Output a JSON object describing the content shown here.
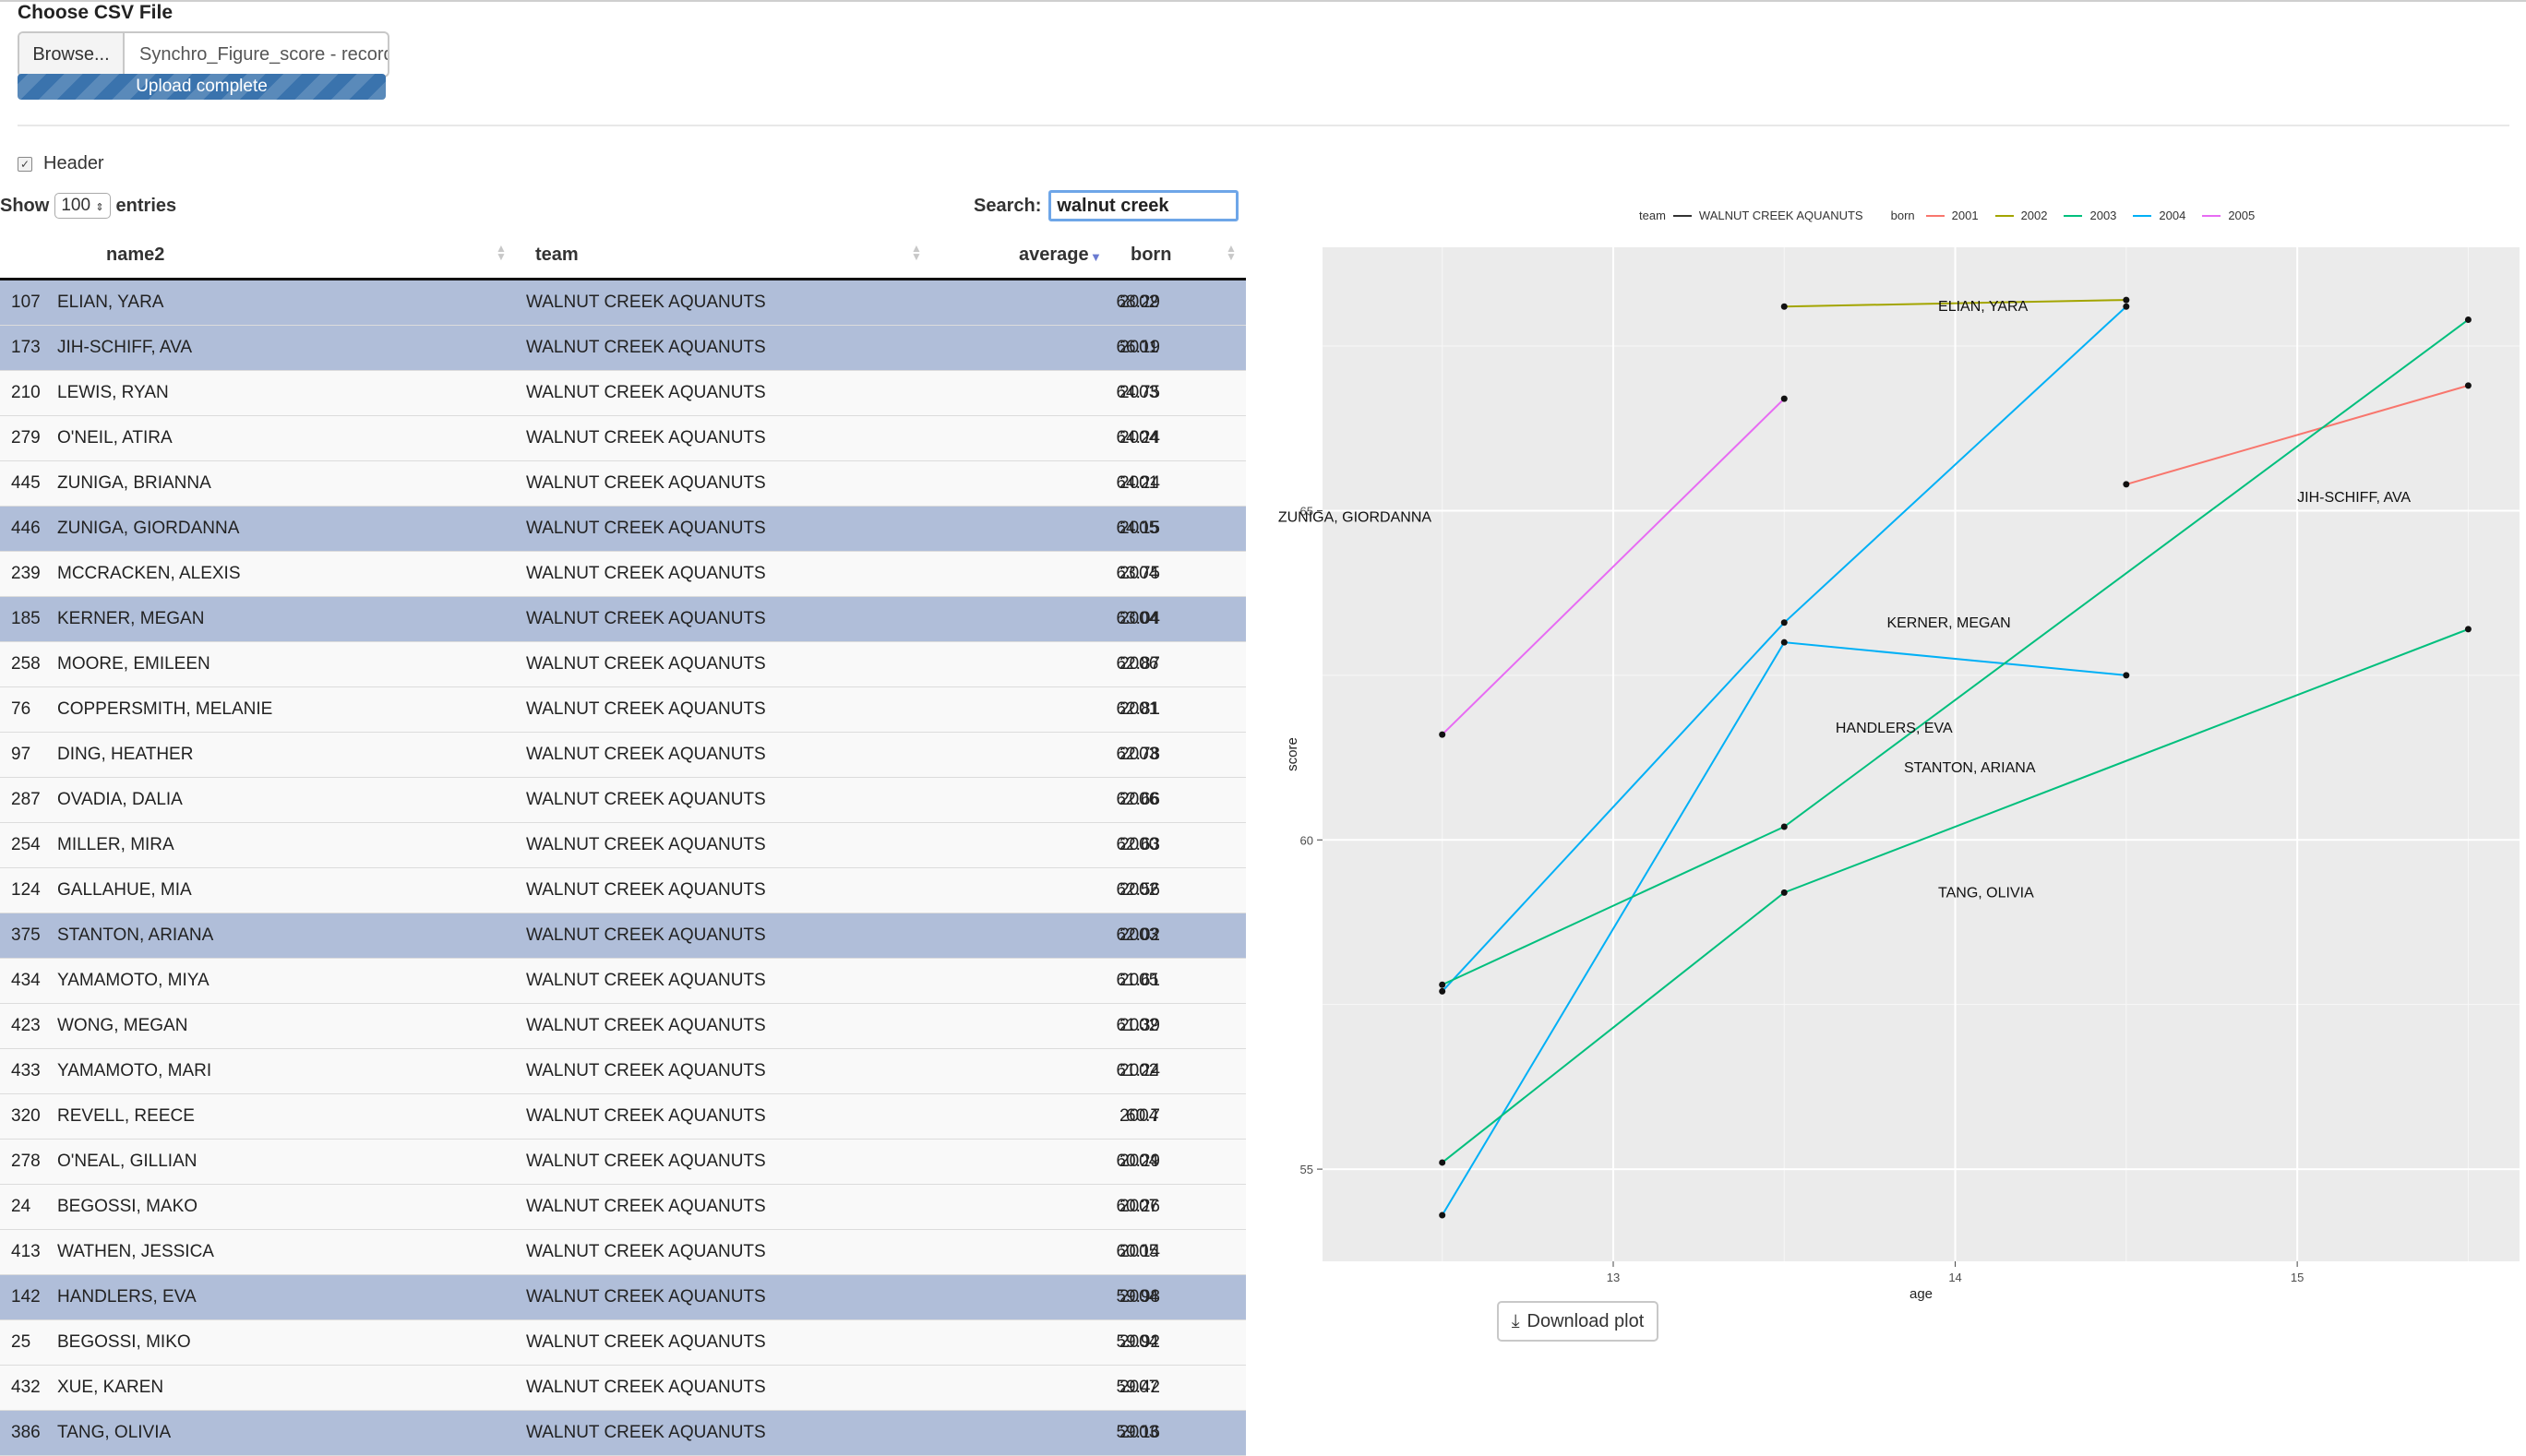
{
  "upload": {
    "label": "Choose CSV File",
    "browse_label": "Browse...",
    "file_name": "Synchro_Figure_score - record",
    "progress_text": "Upload complete"
  },
  "header_option": {
    "label": "Header",
    "checked": true
  },
  "table_controls": {
    "show_label": "Show",
    "length_value": "100",
    "entries_label": "entries",
    "search_label": "Search:",
    "search_value": "walnut creek"
  },
  "table": {
    "columns": [
      "",
      "name2",
      "team",
      "average",
      "born"
    ],
    "sorted_column": "average",
    "rows": [
      {
        "idx": "107",
        "name": "ELIAN, YARA",
        "team": "WALNUT CREEK AQUANUTS",
        "average": "68.29",
        "born": "2002",
        "selected": true
      },
      {
        "idx": "173",
        "name": "JIH-SCHIFF, AVA",
        "team": "WALNUT CREEK AQUANUTS",
        "average": "66.19",
        "born": "2001",
        "selected": true
      },
      {
        "idx": "210",
        "name": "LEWIS, RYAN",
        "team": "WALNUT CREEK AQUANUTS",
        "average": "64.75",
        "born": "2003",
        "selected": false
      },
      {
        "idx": "279",
        "name": "O'NEIL, ATIRA",
        "team": "WALNUT CREEK AQUANUTS",
        "average": "64.24",
        "born": "2004",
        "selected": false
      },
      {
        "idx": "445",
        "name": "ZUNIGA, BRIANNA",
        "team": "WALNUT CREEK AQUANUTS",
        "average": "64.24",
        "born": "2001",
        "selected": false
      },
      {
        "idx": "446",
        "name": "ZUNIGA, GIORDANNA",
        "team": "WALNUT CREEK AQUANUTS",
        "average": "64.15",
        "born": "2005",
        "selected": true
      },
      {
        "idx": "239",
        "name": "MCCRACKEN, ALEXIS",
        "team": "WALNUT CREEK AQUANUTS",
        "average": "63.75",
        "born": "2004",
        "selected": false
      },
      {
        "idx": "185",
        "name": "KERNER, MEGAN",
        "team": "WALNUT CREEK AQUANUTS",
        "average": "63.04",
        "born": "2004",
        "selected": true
      },
      {
        "idx": "258",
        "name": "MOORE, EMILEEN",
        "team": "WALNUT CREEK AQUANUTS",
        "average": "62.87",
        "born": "2006",
        "selected": false
      },
      {
        "idx": "76",
        "name": "COPPERSMITH, MELANIE",
        "team": "WALNUT CREEK AQUANUTS",
        "average": "62.81",
        "born": "2001",
        "selected": false
      },
      {
        "idx": "97",
        "name": "DING, HEATHER",
        "team": "WALNUT CREEK AQUANUTS",
        "average": "62.78",
        "born": "2003",
        "selected": false
      },
      {
        "idx": "287",
        "name": "OVADIA, DALIA",
        "team": "WALNUT CREEK AQUANUTS",
        "average": "62.66",
        "born": "2006",
        "selected": false
      },
      {
        "idx": "254",
        "name": "MILLER, MIRA",
        "team": "WALNUT CREEK AQUANUTS",
        "average": "62.63",
        "born": "2000",
        "selected": false
      },
      {
        "idx": "124",
        "name": "GALLAHUE, MIA",
        "team": "WALNUT CREEK AQUANUTS",
        "average": "62.56",
        "born": "2002",
        "selected": false
      },
      {
        "idx": "375",
        "name": "STANTON, ARIANA",
        "team": "WALNUT CREEK AQUANUTS",
        "average": "62.02",
        "born": "2003",
        "selected": true
      },
      {
        "idx": "434",
        "name": "YAMAMOTO, MIYA",
        "team": "WALNUT CREEK AQUANUTS",
        "average": "61.61",
        "born": "2005",
        "selected": false
      },
      {
        "idx": "423",
        "name": "WONG, MEGAN",
        "team": "WALNUT CREEK AQUANUTS",
        "average": "61.39",
        "born": "2002",
        "selected": false
      },
      {
        "idx": "433",
        "name": "YAMAMOTO, MARI",
        "team": "WALNUT CREEK AQUANUTS",
        "average": "61.24",
        "born": "2002",
        "selected": false
      },
      {
        "idx": "320",
        "name": "REVELL, REECE",
        "team": "WALNUT CREEK AQUANUTS",
        "average": "60.7",
        "born": "2004",
        "selected": false
      },
      {
        "idx": "278",
        "name": "O'NEAL, GILLIAN",
        "team": "WALNUT CREEK AQUANUTS",
        "average": "60.29",
        "born": "2004",
        "selected": false
      },
      {
        "idx": "24",
        "name": "BEGOSSI, MAKO",
        "team": "WALNUT CREEK AQUANUTS",
        "average": "60.26",
        "born": "2007",
        "selected": false
      },
      {
        "idx": "413",
        "name": "WATHEN, JESSICA",
        "team": "WALNUT CREEK AQUANUTS",
        "average": "60.14",
        "born": "2005",
        "selected": false
      },
      {
        "idx": "142",
        "name": "HANDLERS, EVA",
        "team": "WALNUT CREEK AQUANUTS",
        "average": "59.98",
        "born": "2004",
        "selected": true
      },
      {
        "idx": "25",
        "name": "BEGOSSI, MIKO",
        "team": "WALNUT CREEK AQUANUTS",
        "average": "59.92",
        "born": "2004",
        "selected": false
      },
      {
        "idx": "432",
        "name": "XUE, KAREN",
        "team": "WALNUT CREEK AQUANUTS",
        "average": "59.42",
        "born": "2007",
        "selected": false
      },
      {
        "idx": "386",
        "name": "TANG, OLIVIA",
        "team": "WALNUT CREEK AQUANUTS",
        "average": "59.16",
        "born": "2003",
        "selected": true
      }
    ]
  },
  "legend": {
    "team_title": "team",
    "team_entry": "WALNUT CREEK AQUANUTS",
    "born_title": "born",
    "born_entries": [
      {
        "label": "2001",
        "color": "#F8766D"
      },
      {
        "label": "2002",
        "color": "#A3A500"
      },
      {
        "label": "2003",
        "color": "#00BF7D"
      },
      {
        "label": "2004",
        "color": "#00B0F6"
      },
      {
        "label": "2005",
        "color": "#E76BF3"
      }
    ]
  },
  "download_label": "Download plot",
  "chart_data": {
    "type": "line",
    "xlabel": "age",
    "ylabel": "score",
    "xlim": [
      12.15,
      15.65
    ],
    "ylim": [
      53.6,
      69
    ],
    "x_ticks": [
      13,
      14,
      15
    ],
    "y_ticks": [
      55,
      60,
      65
    ],
    "grid": true,
    "legend_position": "top",
    "series": [
      {
        "name": "ELIAN, YARA",
        "born": "2002",
        "color": "#A3A500",
        "points": [
          [
            13.5,
            68.1
          ],
          [
            14.5,
            68.2
          ]
        ]
      },
      {
        "name": "JIH-SCHIFF, AVA",
        "born": "2001",
        "color": "#F8766D",
        "points": [
          [
            14.5,
            65.4
          ],
          [
            15.5,
            66.9
          ]
        ]
      },
      {
        "name": "ZUNIGA, GIORDANNA",
        "born": "2005",
        "color": "#E76BF3",
        "points": [
          [
            12.5,
            61.6
          ],
          [
            13.5,
            66.7
          ]
        ]
      },
      {
        "name": "KERNER, MEGAN",
        "born": "2004",
        "color": "#00B0F6",
        "points": [
          [
            12.5,
            57.7
          ],
          [
            13.5,
            63.3
          ],
          [
            14.5,
            68.1
          ]
        ]
      },
      {
        "name": "HANDLERS, EVA",
        "born": "2004",
        "color": "#00B0F6",
        "points": [
          [
            12.5,
            54.3
          ],
          [
            13.5,
            63.0
          ],
          [
            14.5,
            62.5
          ]
        ]
      },
      {
        "name": "STANTON, ARIANA",
        "born": "2003",
        "color": "#00BF7D",
        "points": [
          [
            12.5,
            57.8
          ],
          [
            13.5,
            60.2
          ],
          [
            15.5,
            67.9
          ]
        ]
      },
      {
        "name": "TANG, OLIVIA",
        "born": "2003",
        "color": "#00BF7D",
        "points": [
          [
            12.5,
            55.1
          ],
          [
            13.5,
            59.2
          ],
          [
            15.5,
            63.2
          ]
        ]
      }
    ],
    "annotations": [
      {
        "text": "ELIAN, YARA",
        "x": 13.95,
        "y": 68.1
      },
      {
        "text": "JIH-SCHIFF, AVA",
        "x": 15.0,
        "y": 65.2
      },
      {
        "text": "ZUNIGA, GIORDANNA",
        "x": 12.02,
        "y": 64.9
      },
      {
        "text": "KERNER, MEGAN",
        "x": 13.8,
        "y": 63.3
      },
      {
        "text": "HANDLERS, EVA",
        "x": 13.65,
        "y": 61.7
      },
      {
        "text": "STANTON, ARIANA",
        "x": 13.85,
        "y": 61.1
      },
      {
        "text": "TANG, OLIVIA",
        "x": 13.95,
        "y": 59.2
      }
    ]
  }
}
